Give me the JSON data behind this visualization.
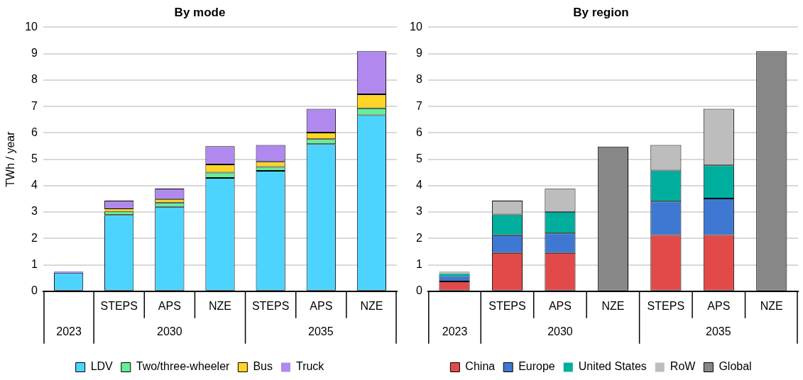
{
  "chart_data": [
    {
      "type": "bar",
      "title": "By mode",
      "ylabel": "TWh / year",
      "stacked": true,
      "categories": [
        null,
        "STEPS",
        "APS",
        "NZE",
        "STEPS",
        "APS",
        "NZE"
      ],
      "annotations": [
        "2023",
        "2030",
        "2035"
      ],
      "series": [
        {
          "name": "LDV",
          "color": "#4dd4fe",
          "values": [
            0.7,
            2.89,
            3.2,
            4.29,
            4.56,
            5.57,
            6.67
          ]
        },
        {
          "name": "Two/three-wheeler",
          "color": "#66ee99",
          "values": [
            null,
            0.13,
            0.16,
            0.2,
            0.15,
            0.19,
            0.26
          ]
        },
        {
          "name": "Bus",
          "color": "#ffd426",
          "values": [
            null,
            0.09,
            0.13,
            0.31,
            0.19,
            0.25,
            0.53
          ]
        },
        {
          "name": "Truck",
          "color": "#b088ee",
          "values": [
            0.05,
            0.32,
            0.4,
            0.69,
            0.64,
            0.9,
            1.63
          ]
        }
      ],
      "ylim": [
        0,
        10
      ],
      "yticks": [
        0,
        1,
        2,
        3,
        4,
        5,
        6,
        7,
        8,
        9,
        10
      ],
      "grid": "y",
      "legend": "bottom"
    },
    {
      "type": "bar",
      "title": "By region",
      "stacked": true,
      "categories": [
        null,
        "STEPS",
        "APS",
        "NZE",
        "STEPS",
        "APS",
        "NZE"
      ],
      "annotations": [
        "2023",
        "2030",
        "2035"
      ],
      "series": [
        {
          "name": "China",
          "color": "#e24a4a",
          "values": [
            0.37,
            1.45,
            1.45,
            null,
            2.13,
            2.13,
            null
          ]
        },
        {
          "name": "Europe",
          "color": "#3f78d3",
          "values": [
            0.2,
            0.67,
            0.74,
            null,
            1.27,
            1.38,
            null
          ]
        },
        {
          "name": "United States",
          "color": "#00ae9e",
          "values": [
            0.09,
            0.79,
            0.82,
            null,
            1.17,
            1.26,
            null
          ]
        },
        {
          "name": "RoW",
          "color": "#bdbdbd",
          "values": [
            0.09,
            0.52,
            0.87,
            null,
            0.97,
            2.14,
            null
          ]
        },
        {
          "name": "Global",
          "color": "#878787",
          "values": [
            null,
            null,
            null,
            5.48,
            null,
            null,
            9.09
          ]
        }
      ],
      "ylim": [
        0,
        10
      ],
      "yticks": [
        0,
        1,
        2,
        3,
        4,
        5,
        6,
        7,
        8,
        9,
        10
      ],
      "grid": "y",
      "legend": "bottom"
    }
  ]
}
